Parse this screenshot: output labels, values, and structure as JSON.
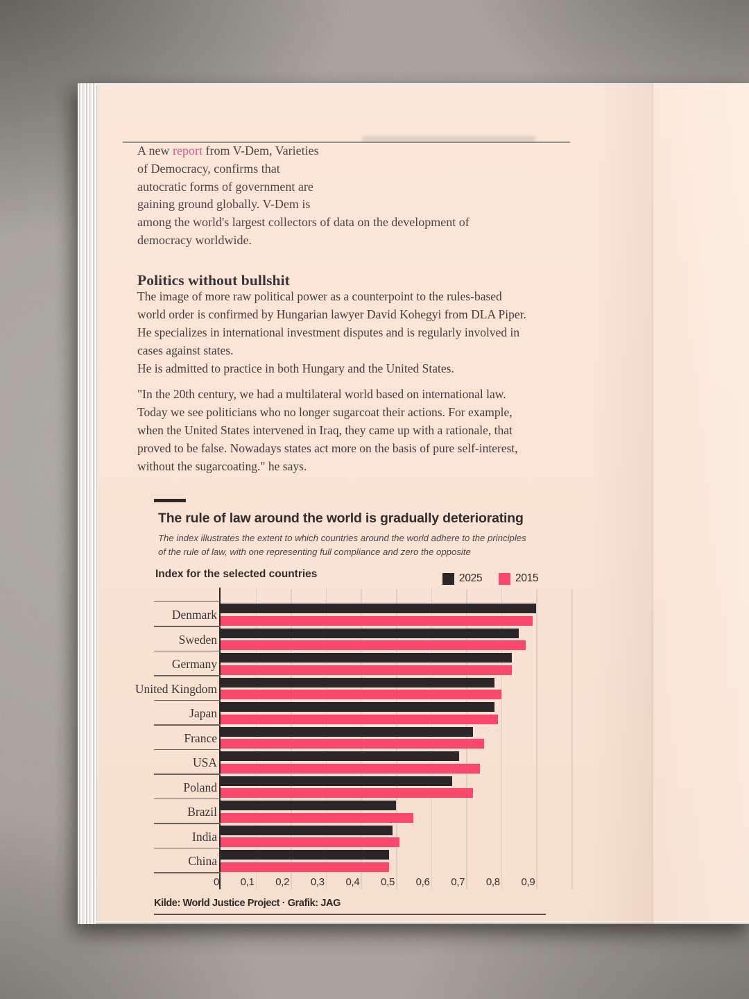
{
  "article": {
    "intro": {
      "pre": "A new ",
      "link_text": "report",
      "link_color": "#cf5b94",
      "line1_post": " from V-Dem, Varieties",
      "rest": "of Democracy, confirms that\nautocratic forms of government are\ngaining ground globally. V-Dem is\namong the world's largest collectors of data on the development of\ndemocracy worldwide."
    },
    "heading": "Politics without bullshit",
    "para1": "The image of more raw political power as a counterpoint to the rules-based\nworld order is confirmed by Hungarian lawyer David Kohegyi from DLA Piper.\nHe specializes in international investment disputes and is regularly involved in\ncases against states.\nHe is admitted to practice in both Hungary and the United States.",
    "quote": "\"In the 20th century, we had a multilateral world based on international law.\nToday we see politicians who no longer sugarcoat their actions. For example,\nwhen the United States intervened in Iraq, they came up with a rationale, that\nproved to be false. Nowadays states act more on the basis of pure self-interest,\nwithout the sugarcoating.\" he says."
  },
  "chart": {
    "title": "The rule of law around the world is gradually deteriorating",
    "subtitle": "The index illustrates the extent to which countries around the world adhere to the principles\nof the rule of law, with one representing full compliance and zero the opposite",
    "index_label": "Index for the selected countries",
    "source": "Kilde: World Justice Project  ·  Grafik: JAG",
    "chart_data": {
      "type": "bar",
      "orientation": "horizontal",
      "title": "The rule of law around the world is gradually deteriorating",
      "subtitle": "The index illustrates the extent to which countries around the world adhere to the principles of the rule of law, with one representing full compliance and zero the opposite",
      "categories": [
        "Denmark",
        "Sweden",
        "Germany",
        "United Kingdom",
        "Japan",
        "France",
        "USA",
        "Poland",
        "Brazil",
        "India",
        "China"
      ],
      "series": [
        {
          "name": "2025",
          "color": "#2b2628",
          "values": [
            0.9,
            0.85,
            0.83,
            0.78,
            0.78,
            0.72,
            0.68,
            0.66,
            0.5,
            0.49,
            0.48
          ]
        },
        {
          "name": "2015",
          "color": "#f9486c",
          "values": [
            0.89,
            0.87,
            0.83,
            0.8,
            0.79,
            0.75,
            0.74,
            0.72,
            0.55,
            0.51,
            0.48
          ]
        }
      ],
      "xlim": [
        0,
        1.0
      ],
      "xtick_values": [
        0,
        0.1,
        0.2,
        0.3,
        0.4,
        0.5,
        0.6,
        0.7,
        0.8,
        0.9
      ],
      "xtick_labels": [
        "0",
        "0,1",
        "0,2",
        "0,3",
        "0,4",
        "0,5",
        "0,6",
        "0,7",
        "0,8",
        "0,9"
      ],
      "grid": true,
      "grid_step": 0.1,
      "legend_position": "top-right",
      "source": "Kilde: World Justice Project · Grafik: JAG"
    }
  }
}
